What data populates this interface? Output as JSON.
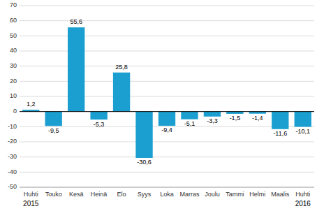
{
  "chart_data": {
    "type": "bar",
    "categories": [
      "Huhti",
      "Touko",
      "Kesä",
      "Heinä",
      "Elo",
      "Syys",
      "Loka",
      "Marras",
      "Joulu",
      "Tammi",
      "Helmi",
      "Maalis",
      "Huhti"
    ],
    "values": [
      1.2,
      -9.5,
      55.6,
      -5.3,
      25.8,
      -30.6,
      -9.4,
      -5.1,
      -3.3,
      -1.5,
      -1.4,
      -11.6,
      -10.1
    ],
    "value_labels": [
      "1,2",
      "-9,5",
      "55,6",
      "-5,3",
      "25,8",
      "-30,6",
      "-9,4",
      "-5,1",
      "-3,3",
      "-1,5",
      "-1,4",
      "-11,6",
      "-10,1"
    ],
    "color": "#1b9fd0",
    "ylim": [
      -50,
      70
    ],
    "yticks": [
      -50,
      -40,
      -30,
      -20,
      -10,
      0,
      10,
      20,
      30,
      40,
      50,
      60,
      70
    ],
    "grid": true,
    "data_labels": true,
    "annotations": [
      "2015",
      "2016"
    ]
  }
}
